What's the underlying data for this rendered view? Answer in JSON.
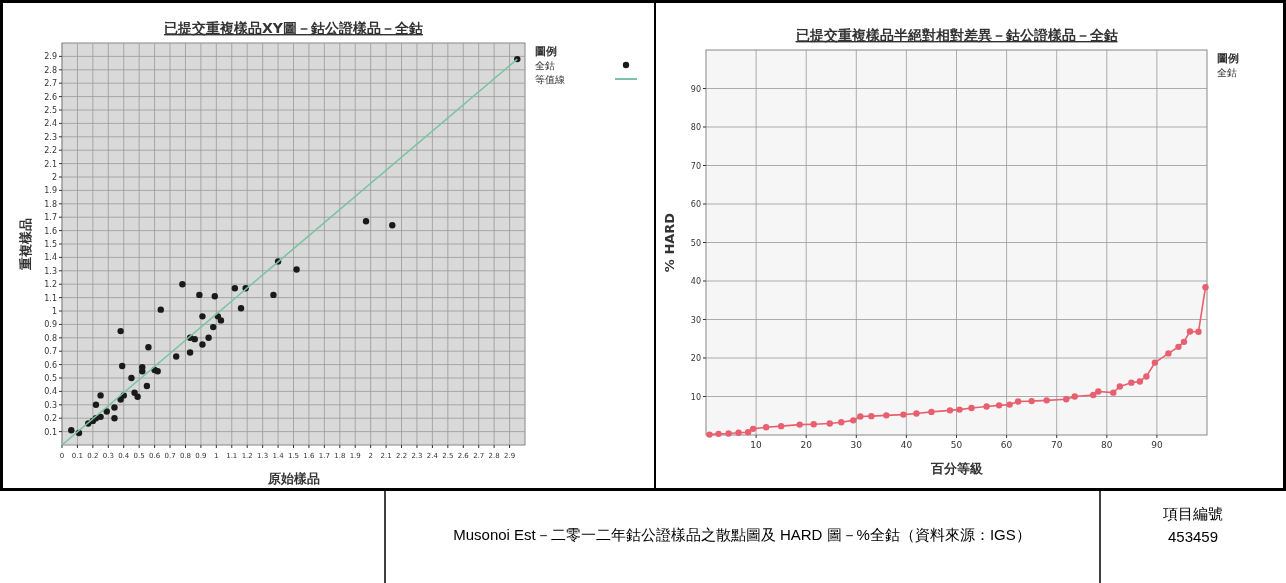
{
  "chart_data": [
    {
      "type": "scatter",
      "title": "已提交重複樣品XY圖－鈷公證樣品－全鈷",
      "xlabel": "原始樣品",
      "ylabel": "重複樣品",
      "legend_title": "圖例",
      "legend": "right",
      "grid": true,
      "xlim": [
        0,
        3
      ],
      "ylim": [
        0,
        3
      ],
      "xticks": [
        0,
        0.1,
        0.2,
        0.3,
        0.4,
        0.5,
        0.6,
        0.7,
        0.8,
        0.9,
        1,
        1.1,
        1.2,
        1.3,
        1.4,
        1.5,
        1.6,
        1.7,
        1.8,
        1.9,
        2,
        2.1,
        2.2,
        2.3,
        2.4,
        2.5,
        2.6,
        2.7,
        2.8,
        2.9
      ],
      "yticks": [
        0.1,
        0.2,
        0.3,
        0.4,
        0.5,
        0.6,
        0.7,
        0.8,
        0.9,
        1,
        1.1,
        1.2,
        1.3,
        1.4,
        1.5,
        1.6,
        1.7,
        1.8,
        1.9,
        2,
        2.1,
        2.2,
        2.3,
        2.4,
        2.5,
        2.6,
        2.7,
        2.8,
        2.9
      ],
      "series": [
        {
          "name": "全鈷",
          "color": "#1a1a1a",
          "marker": "circle",
          "x": [
            0.06,
            0.11,
            0.17,
            0.2,
            0.22,
            0.25,
            0.22,
            0.25,
            0.29,
            0.34,
            0.34,
            0.38,
            0.4,
            0.39,
            0.38,
            0.45,
            0.47,
            0.49,
            0.52,
            0.52,
            0.55,
            0.56,
            0.6,
            0.62,
            0.64,
            0.74,
            0.78,
            0.83,
            0.83,
            0.86,
            0.89,
            0.91,
            0.91,
            0.95,
            0.98,
            0.99,
            1.01,
            1.03,
            1.12,
            1.16,
            1.19,
            1.37,
            1.4,
            1.52,
            1.97,
            2.14,
            2.95
          ],
          "values": [
            0.11,
            0.09,
            0.16,
            0.18,
            0.2,
            0.21,
            0.3,
            0.37,
            0.25,
            0.2,
            0.28,
            0.34,
            0.37,
            0.59,
            0.85,
            0.5,
            0.39,
            0.36,
            0.58,
            0.55,
            0.44,
            0.73,
            0.56,
            0.55,
            1.01,
            0.66,
            1.2,
            0.69,
            0.8,
            0.79,
            1.12,
            0.96,
            0.75,
            0.8,
            0.88,
            1.11,
            0.96,
            0.93,
            1.17,
            1.02,
            1.17,
            1.12,
            1.37,
            1.31,
            1.67,
            1.64,
            2.88
          ]
        },
        {
          "name": "等值線",
          "type": "line",
          "color": "#7cc3a5",
          "x": [
            0,
            2.95
          ],
          "values": [
            0,
            2.88
          ]
        }
      ]
    },
    {
      "type": "line",
      "title": "已提交重複樣品半絕對相對差異－鈷公證樣品－全鈷",
      "xlabel": "百分等級",
      "ylabel": "% HARD",
      "legend_title": "圖例",
      "legend": "right",
      "grid": true,
      "marker": "circle",
      "xlim": [
        0,
        100
      ],
      "ylim": [
        0,
        100
      ],
      "xticks": [
        10,
        20,
        30,
        40,
        50,
        60,
        70,
        80,
        90
      ],
      "yticks": [
        10,
        20,
        30,
        40,
        50,
        60,
        70,
        80,
        90
      ],
      "series": [
        {
          "name": "全鈷",
          "color": "#e8606f",
          "x": [
            0.7,
            2.5,
            4.5,
            6.5,
            8.4,
            9.4,
            12,
            15,
            18.7,
            21.5,
            24.7,
            27,
            29.4,
            30.8,
            33,
            36,
            39.4,
            42,
            45,
            48.7,
            50.6,
            53,
            56,
            58.5,
            60.6,
            62.3,
            65,
            68,
            71.9,
            73.6,
            77.3,
            78.3,
            81.3,
            82.6,
            84.9,
            86.6,
            87.9,
            89.6,
            92.3,
            94.3,
            95.4,
            96.6,
            98.3,
            99.7
          ],
          "values": [
            0.1,
            0.3,
            0.4,
            0.6,
            0.7,
            1.6,
            2.0,
            2.3,
            2.7,
            2.8,
            3.0,
            3.3,
            3.8,
            4.8,
            4.9,
            5.1,
            5.3,
            5.6,
            6.0,
            6.4,
            6.6,
            7.0,
            7.4,
            7.7,
            7.9,
            8.7,
            8.8,
            9.0,
            9.3,
            10.0,
            10.4,
            11.3,
            11.0,
            12.6,
            13.6,
            13.9,
            15.2,
            18.8,
            21.2,
            22.9,
            24.2,
            26.9,
            26.8,
            38.4
          ]
        }
      ],
      "annotations": [
        "Musonoi Est－二零一二年鈷公證樣品之散點圖及 HARD 圖－%全鈷（資料來源：IGS）",
        "項目編號",
        "453459"
      ]
    }
  ]
}
